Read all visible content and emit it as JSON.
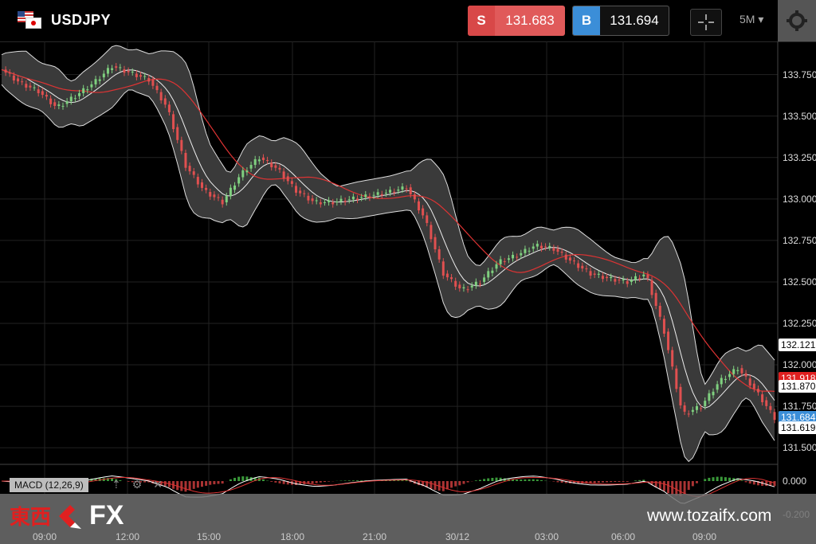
{
  "header": {
    "pair": "USDJPY",
    "sell": {
      "tag": "S",
      "price": "131.683"
    },
    "buy": {
      "tag": "B",
      "price": "131.694"
    },
    "timeframe": "5M ▾"
  },
  "chart_data": {
    "type": "candlestick",
    "symbol": "USDJPY",
    "ylim": [
      131.4,
      133.95
    ],
    "y_ticks": [
      "133.750",
      "133.500",
      "133.250",
      "133.000",
      "132.750",
      "132.500",
      "132.250",
      "132.000",
      "131.750",
      "131.500"
    ],
    "x_ticks": [
      "09:00",
      "12:00",
      "15:00",
      "18:00",
      "21:00",
      "30/12",
      "03:00",
      "06:00",
      "09:00"
    ],
    "close_path": [
      133.78,
      133.7,
      133.65,
      133.55,
      133.62,
      133.7,
      133.8,
      133.76,
      133.72,
      133.55,
      133.2,
      133.05,
      132.98,
      133.15,
      133.25,
      133.18,
      133.05,
      132.98,
      132.98,
      133.0,
      133.02,
      133.04,
      133.07,
      132.88,
      132.55,
      132.45,
      132.5,
      132.62,
      132.66,
      132.72,
      132.7,
      132.62,
      132.55,
      132.52,
      132.5,
      132.55,
      132.2,
      131.7,
      131.75,
      131.9,
      131.98,
      131.84,
      131.68
    ],
    "indicator": "MACD (12,26,9)",
    "macd_ticks": [
      "0.000",
      "-0.200"
    ],
    "price_tags": [
      {
        "label": "132.121",
        "color": "#ffffff"
      },
      {
        "label": "131.918",
        "color": "#e02020"
      },
      {
        "label": "131.870",
        "color": "#ffffff"
      },
      {
        "label": "131.684",
        "color": "#3b8ed8"
      },
      {
        "label": "131.619",
        "color": "#ffffff"
      }
    ]
  },
  "footer": {
    "logo_cjk": "東西",
    "logo_fx": "FX",
    "site": "www.tozaifx.com"
  },
  "icons": [
    "crosshair-icon",
    "gear-icon",
    "arrow-up-icon",
    "settings-icon",
    "close-icon"
  ]
}
